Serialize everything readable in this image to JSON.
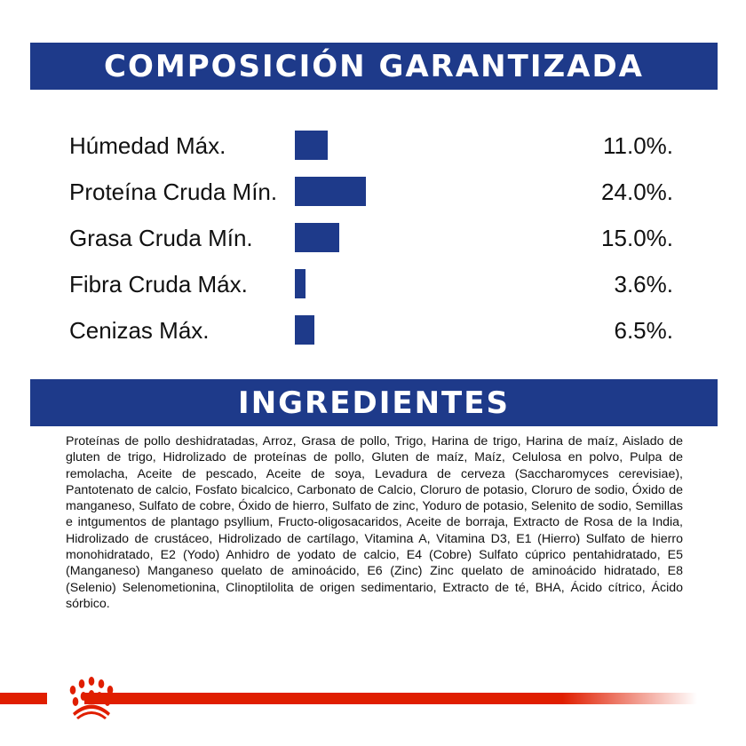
{
  "composition": {
    "title": "COMPOSICIÓN GARANTIZADA",
    "bar_color": "#1e3a8a",
    "rows": [
      {
        "label": "Húmedad Máx.",
        "value": "11.0%.",
        "percent": 11.0
      },
      {
        "label": "Proteína Cruda Mín.",
        "value": "24.0%.",
        "percent": 24.0
      },
      {
        "label": "Grasa Cruda Mín.",
        "value": "15.0%.",
        "percent": 15.0
      },
      {
        "label": "Fibra Cruda Máx.",
        "value": "3.6%.",
        "percent": 3.6
      },
      {
        "label": "Cenizas Máx.",
        "value": "6.5%.",
        "percent": 6.5
      }
    ]
  },
  "ingredients": {
    "title": "INGREDIENTES",
    "text": "Proteínas de pollo deshidratadas, Arroz, Grasa de pollo, Trigo, Harina de trigo, Harina de maíz, Aislado de gluten de trigo, Hidrolizado de proteínas de pollo, Gluten de maíz, Maíz, Celulosa en polvo, Pulpa de remolacha, Aceite de pescado, Aceite de soya, Levadura de cerveza (Saccharomyces cerevisiae), Pantotenato de calcio, Fosfato bicalcico, Carbonato de Calcio, Cloruro de potasio, Cloruro de sodio, Óxido de manganeso, Sulfato de cobre, Óxido de hierro, Sulfato de zinc, Yoduro de potasio, Selenito de sodio, Semillas e intgumentos de plantago psyllium, Fructo-oligosacaridos, Aceite de borraja, Extracto de Rosa de la India, Hidrolizado de crustáceo, Hidrolizado de cartílago, Vitamina A, Vitamina D3, E1 (Hierro) Sulfato de hierro monohidratado, E2 (Yodo) Anhidro de yodato de calcio, E4 (Cobre) Sulfato cúprico pentahidratado, E5 (Manganeso) Manganeso quelato de aminoácido, E6 (Zinc) Zinc quelato de aminoácido hidratado, E8 (Selenio) Selenometionina, Clinoptilolita de origen sedimentario, Extracto de té, BHA, Ácido cítrico, Ácido sórbico."
  },
  "footer": {
    "logo": "royal-canin-crown-logo",
    "accent_color": "#e01e00"
  }
}
